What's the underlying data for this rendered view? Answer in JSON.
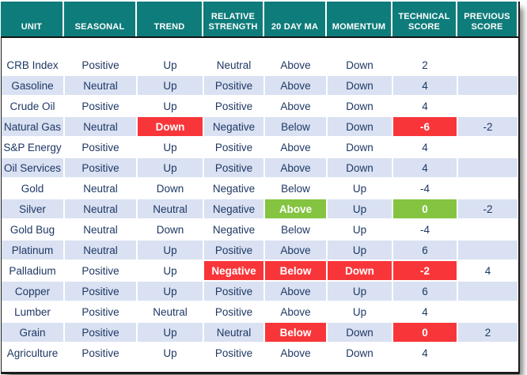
{
  "colors": {
    "header_bg": "#0E7C7A",
    "row_alt": "#D9E1F2",
    "ink": "#1F3864",
    "red": "#F8363A",
    "green": "#84C441",
    "border": "#1C1C1C"
  },
  "table": {
    "column_keys": [
      "unit",
      "seasonal",
      "trend",
      "relative-strength",
      "20-day-ma",
      "momentum",
      "technical-score",
      "previous-score"
    ],
    "columns": [
      "UNIT",
      "SEASONAL",
      "TREND",
      "RELATIVE STRENGTH",
      "20 DAY MA",
      "MOMENTUM",
      "TECHNICAL SCORE",
      "PREVIOUS SCORE"
    ],
    "rows": [
      {
        "cells": [
          {
            "t": "CRB Index"
          },
          {
            "t": "Positive"
          },
          {
            "t": "Up"
          },
          {
            "t": "Neutral"
          },
          {
            "t": "Above"
          },
          {
            "t": "Down"
          },
          {
            "t": "2"
          },
          {
            "t": ""
          }
        ]
      },
      {
        "cells": [
          {
            "t": "Gasoline"
          },
          {
            "t": "Neutral"
          },
          {
            "t": "Up"
          },
          {
            "t": "Positive"
          },
          {
            "t": "Above"
          },
          {
            "t": "Down"
          },
          {
            "t": "4"
          },
          {
            "t": ""
          }
        ]
      },
      {
        "cells": [
          {
            "t": "Crude Oil"
          },
          {
            "t": "Positive"
          },
          {
            "t": "Up"
          },
          {
            "t": "Positive"
          },
          {
            "t": "Above"
          },
          {
            "t": "Down"
          },
          {
            "t": "4"
          },
          {
            "t": ""
          }
        ]
      },
      {
        "cells": [
          {
            "t": "Natural Gas"
          },
          {
            "t": "Neutral"
          },
          {
            "t": "Down",
            "h": "red"
          },
          {
            "t": "Negative"
          },
          {
            "t": "Below"
          },
          {
            "t": "Down"
          },
          {
            "t": "-6",
            "h": "red"
          },
          {
            "t": "-2"
          }
        ]
      },
      {
        "cells": [
          {
            "t": "S&P Energy"
          },
          {
            "t": "Positive"
          },
          {
            "t": "Up"
          },
          {
            "t": "Positive"
          },
          {
            "t": "Above"
          },
          {
            "t": "Down"
          },
          {
            "t": "4"
          },
          {
            "t": ""
          }
        ]
      },
      {
        "cells": [
          {
            "t": "Oil Services"
          },
          {
            "t": "Positive"
          },
          {
            "t": "Up"
          },
          {
            "t": "Positive"
          },
          {
            "t": "Above"
          },
          {
            "t": "Down"
          },
          {
            "t": "4"
          },
          {
            "t": ""
          }
        ]
      },
      {
        "cells": [
          {
            "t": "Gold"
          },
          {
            "t": "Neutral"
          },
          {
            "t": "Down"
          },
          {
            "t": "Negative"
          },
          {
            "t": "Below"
          },
          {
            "t": "Up"
          },
          {
            "t": "-4"
          },
          {
            "t": ""
          }
        ]
      },
      {
        "cells": [
          {
            "t": "Silver"
          },
          {
            "t": "Neutral"
          },
          {
            "t": "Neutral"
          },
          {
            "t": "Negative"
          },
          {
            "t": "Above",
            "h": "green"
          },
          {
            "t": "Up"
          },
          {
            "t": "0",
            "h": "green"
          },
          {
            "t": "-2"
          }
        ]
      },
      {
        "cells": [
          {
            "t": "Gold Bug"
          },
          {
            "t": "Neutral"
          },
          {
            "t": "Down"
          },
          {
            "t": "Negative"
          },
          {
            "t": "Below"
          },
          {
            "t": "Up"
          },
          {
            "t": "-4"
          },
          {
            "t": ""
          }
        ]
      },
      {
        "cells": [
          {
            "t": "Platinum"
          },
          {
            "t": "Neutral"
          },
          {
            "t": "Up"
          },
          {
            "t": "Positive"
          },
          {
            "t": "Above"
          },
          {
            "t": "Up"
          },
          {
            "t": "6"
          },
          {
            "t": ""
          }
        ]
      },
      {
        "cells": [
          {
            "t": "Palladium"
          },
          {
            "t": "Positive"
          },
          {
            "t": "Up"
          },
          {
            "t": "Negative",
            "h": "red"
          },
          {
            "t": "Below",
            "h": "red"
          },
          {
            "t": "Down",
            "h": "red"
          },
          {
            "t": "-2",
            "h": "red"
          },
          {
            "t": "4"
          }
        ]
      },
      {
        "cells": [
          {
            "t": "Copper"
          },
          {
            "t": "Positive"
          },
          {
            "t": "Up"
          },
          {
            "t": "Positive"
          },
          {
            "t": "Above"
          },
          {
            "t": "Up"
          },
          {
            "t": "6"
          },
          {
            "t": ""
          }
        ]
      },
      {
        "cells": [
          {
            "t": "Lumber"
          },
          {
            "t": "Positive"
          },
          {
            "t": "Neutral"
          },
          {
            "t": "Positive"
          },
          {
            "t": "Above"
          },
          {
            "t": "Up"
          },
          {
            "t": "4"
          },
          {
            "t": ""
          }
        ]
      },
      {
        "cells": [
          {
            "t": "Grain"
          },
          {
            "t": "Positive"
          },
          {
            "t": "Up"
          },
          {
            "t": "Neutral"
          },
          {
            "t": "Below",
            "h": "red"
          },
          {
            "t": "Down"
          },
          {
            "t": "0",
            "h": "red"
          },
          {
            "t": "2"
          }
        ]
      },
      {
        "cells": [
          {
            "t": "Agriculture"
          },
          {
            "t": "Positive"
          },
          {
            "t": "Up"
          },
          {
            "t": "Positive"
          },
          {
            "t": "Above"
          },
          {
            "t": "Down"
          },
          {
            "t": "4"
          },
          {
            "t": ""
          }
        ]
      }
    ]
  }
}
